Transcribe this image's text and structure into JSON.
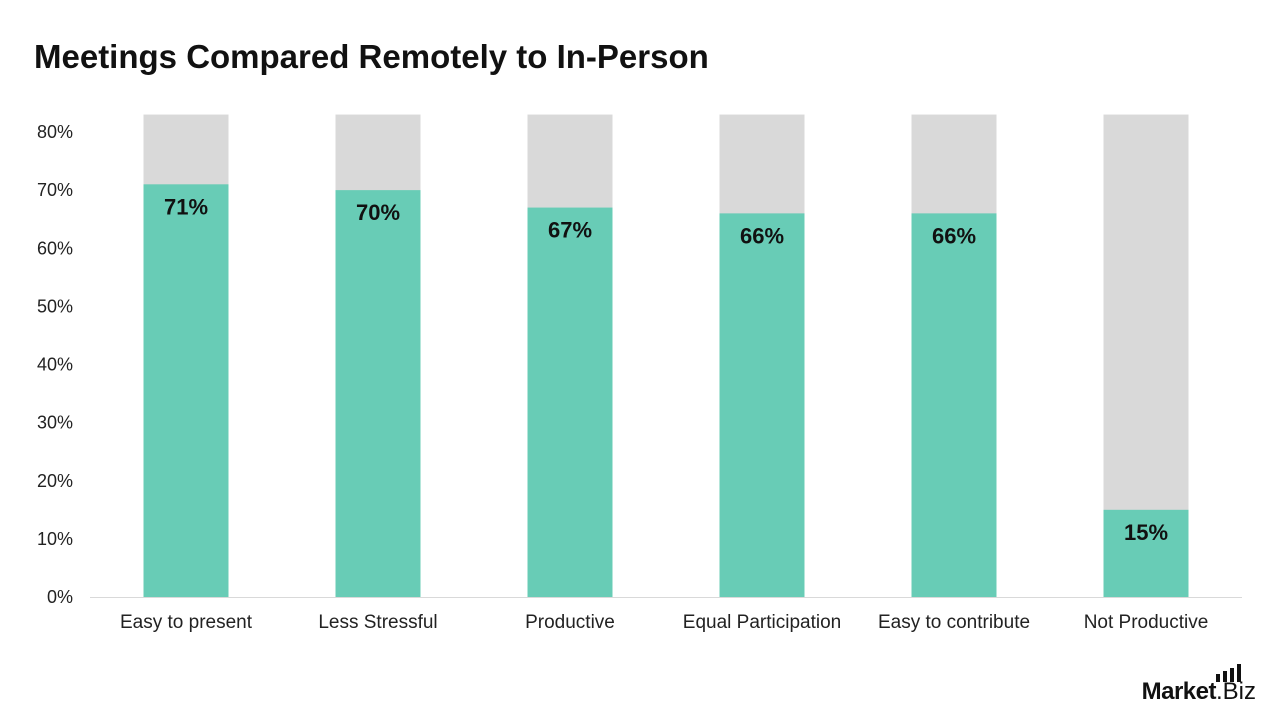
{
  "chart_data": {
    "type": "bar",
    "title": "Meetings Compared Remotely to In-Person",
    "categories": [
      "Easy to present",
      "Less Stressful",
      "Productive",
      "Equal Participation",
      "Easy to contribute",
      "Not Productive"
    ],
    "values": [
      71,
      70,
      67,
      66,
      66,
      15
    ],
    "data_labels": [
      "71%",
      "70%",
      "67%",
      "66%",
      "66%",
      "15%"
    ],
    "background_bar_value": 83,
    "ylim": [
      0,
      80
    ],
    "yticks": [
      "0%",
      "10%",
      "20%",
      "30%",
      "40%",
      "50%",
      "60%",
      "70%",
      "80%"
    ],
    "grid": false,
    "legend": "none",
    "colors": {
      "bar": "#68ccb6",
      "background_bar": "#d9d9d9",
      "axis": "#d9d9d9"
    }
  },
  "brand": {
    "part1": "Market",
    "part2": ".Biz"
  }
}
